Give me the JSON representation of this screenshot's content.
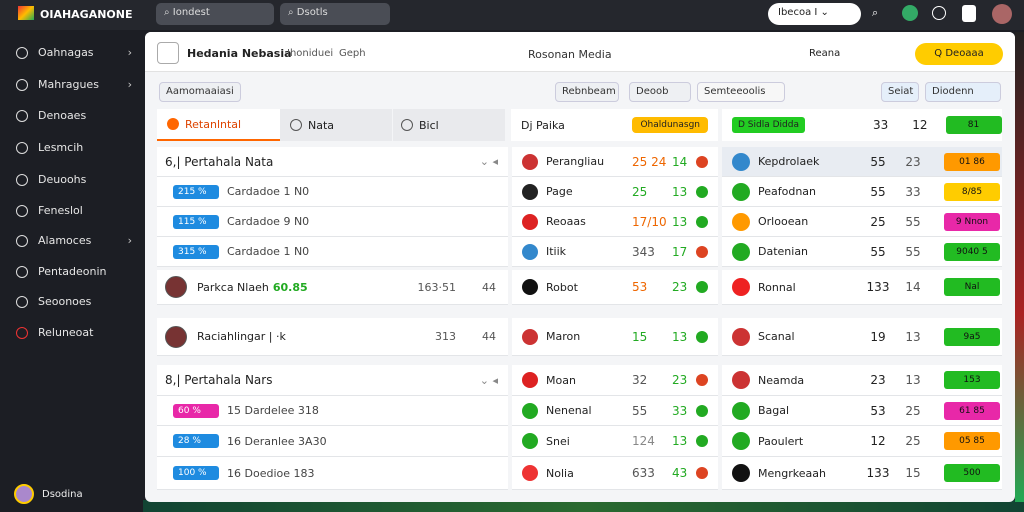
{
  "topbar": {
    "brand": "OIAHAGANONE",
    "search1": "Iondest",
    "search2": "Dsotls",
    "select": "Ibecoa I"
  },
  "sidebar": {
    "items": [
      "Oahnagas",
      "Mahragues",
      "Denoaes",
      "Lesmcih",
      "Deuoohs",
      "Feneslol",
      "Alamoces",
      "Pentadeonin",
      "Seoonoes",
      "Reluneoat"
    ],
    "footer": "Dsodina"
  },
  "header": {
    "title": "Hedania Nebasia",
    "sub": "Ihoniduei",
    "tab": "Geph",
    "center": "Rosonan Media",
    "right": "Reana",
    "button": "Q Deoaaa"
  },
  "toolbar": {
    "left": "Aamomaaiasi",
    "b1": "Rebnbeam",
    "b2": "Deoob",
    "b3": "Semteeoolis",
    "b4": "Seiat",
    "b5": "Diodenn"
  },
  "tabs": {
    "t1": "Retanlntal",
    "t2": "Nata",
    "t3": "Bicl",
    "t4": "Dj Paika",
    "t5": "Ohaldunasgn",
    "t6": "D Sidla Didda",
    "n1": "33",
    "n2": "12",
    "n3": "81"
  },
  "rows": [
    {
      "left": {
        "kind": "group",
        "title": "6,| Pertahala Nata"
      },
      "mid": {
        "name": "Perangliau",
        "a": "25 24",
        "b": "14"
      },
      "right": {
        "name": "Kepdrolaek",
        "a": "55",
        "b": "23",
        "pill": "01 86"
      }
    },
    {
      "left": {
        "kind": "stat",
        "badge": "215 %",
        "text": "Cardadoe 1 N0"
      },
      "mid": {
        "name": "Page",
        "a": "25",
        "b": "13"
      },
      "right": {
        "name": "Peafodnan",
        "a": "55",
        "b": "33",
        "pill": "8/85"
      }
    },
    {
      "left": {
        "kind": "stat",
        "badge": "115 %",
        "text": "Cardadoe 9 N0"
      },
      "mid": {
        "name": "Reoaas",
        "a": "17/10",
        "b": "13"
      },
      "right": {
        "name": "Orlooean",
        "a": "25",
        "b": "55",
        "pill": "9 Nnon"
      }
    },
    {
      "left": {
        "kind": "stat",
        "badge": "315 %",
        "text": "Cardadoe 1 N0"
      },
      "mid": {
        "name": "Itiik",
        "a": "343",
        "b": "17"
      },
      "right": {
        "name": "Datenian",
        "a": "55",
        "b": "55",
        "pill": "9040 5"
      }
    },
    {
      "left": {
        "kind": "player",
        "title": "Parkca Nlaeh",
        "tag": "60.85",
        "a": "163·51",
        "b": "44"
      },
      "mid": {
        "name": "Robot",
        "a": "53",
        "b": "23"
      },
      "right": {
        "name": "Ronnal",
        "a": "133",
        "b": "14",
        "pill": "Nal"
      }
    },
    {
      "left": {
        "kind": "card",
        "title": "Raciahlingar | ·k",
        "a": "313",
        "b": "44"
      },
      "mid": {
        "name": "Maron",
        "a": "15",
        "b": "13"
      },
      "right": {
        "name": "Scanal",
        "a": "19",
        "b": "13",
        "pill": "9a5"
      }
    },
    {
      "left": {
        "kind": "group",
        "title": "8,| Pertahala Nars"
      },
      "mid": {
        "name": "Moan",
        "a": "32",
        "b": "23"
      },
      "right": {
        "name": "Neamda",
        "a": "23",
        "b": "13",
        "pill": "153"
      }
    },
    {
      "left": {
        "kind": "stat",
        "badge": "60 %",
        "text": "15 Dardelee 318"
      },
      "mid": {
        "name": "Nenenal",
        "a": "55",
        "b": "33"
      },
      "right": {
        "name": "Bagal",
        "a": "53",
        "b": "25",
        "pill": "61 85"
      }
    },
    {
      "left": {
        "kind": "stat",
        "badge": "28 %",
        "text": "16 Deranlee 3A30"
      },
      "mid": {
        "name": "Snei",
        "a": "124",
        "b": "13"
      },
      "right": {
        "name": "Paoulert",
        "a": "12",
        "b": "25",
        "pill": "05 85"
      }
    },
    {
      "left": {
        "kind": "stat",
        "badge": "100 %",
        "text": "16 Doedioe 183"
      },
      "mid": {
        "name": "Nolia",
        "a": "633",
        "b": "43"
      },
      "right": {
        "name": "Mengrkeaah",
        "a": "133",
        "b": "15",
        "pill": "500"
      }
    }
  ]
}
